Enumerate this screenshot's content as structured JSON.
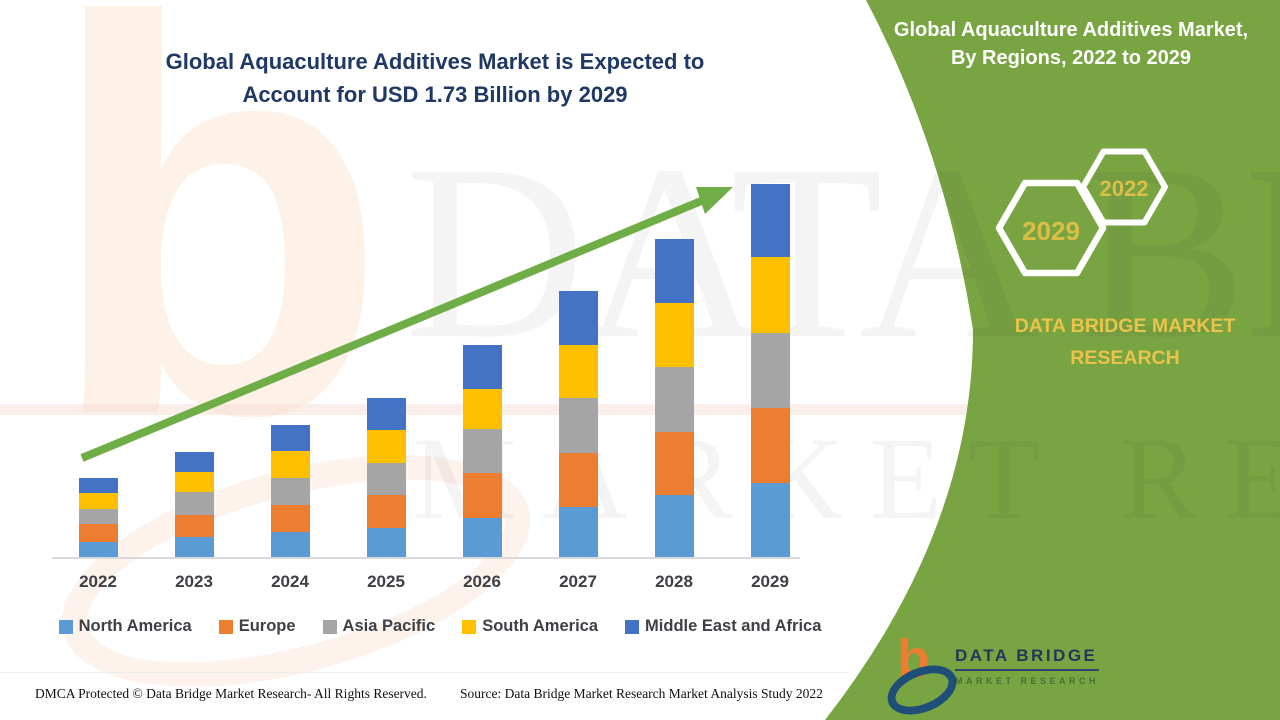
{
  "title": {
    "line1": "Global Aquaculture Additives Market is Expected to",
    "line2": "Account for USD 1.73 Billion by 2029"
  },
  "side_panel": {
    "title_line1": "Global Aquaculture Additives Market,",
    "title_line2": "By Regions, 2022 to 2029",
    "hexagon_large_label": "2029",
    "hexagon_small_label": "2022",
    "brand_line1": "DATA BRIDGE MARKET",
    "brand_line2": "RESEARCH"
  },
  "chart_data": {
    "type": "bar",
    "stacked": true,
    "title": "Global Aquaculture Additives Market is Expected to Account for USD 1.73 Billion by 2029",
    "unit": "USD Billion",
    "xlabel": "",
    "ylabel": "",
    "gridlines": false,
    "legend_position": "bottom",
    "trend_arrow": "up",
    "categories": [
      "2022",
      "2023",
      "2024",
      "2025",
      "2026",
      "2027",
      "2028",
      "2029"
    ],
    "series": [
      {
        "name": "North America",
        "color": "#5B9BD5",
        "values": [
          0.074,
          0.097,
          0.12,
          0.139,
          0.185,
          0.236,
          0.291,
          0.347
        ]
      },
      {
        "name": "Europe",
        "color": "#ED7D31",
        "values": [
          0.083,
          0.102,
          0.125,
          0.153,
          0.208,
          0.25,
          0.291,
          0.347
        ]
      },
      {
        "name": "Asia Pacific",
        "color": "#A5A5A5",
        "values": [
          0.069,
          0.106,
          0.125,
          0.148,
          0.204,
          0.254,
          0.301,
          0.347
        ]
      },
      {
        "name": "South America",
        "color": "#FFC000",
        "values": [
          0.074,
          0.093,
          0.125,
          0.153,
          0.185,
          0.245,
          0.296,
          0.352
        ]
      },
      {
        "name": "Middle East and Africa",
        "color": "#4472C4",
        "values": [
          0.069,
          0.093,
          0.12,
          0.148,
          0.204,
          0.25,
          0.296,
          0.338
        ]
      }
    ],
    "totals": [
      0.37,
      0.49,
      0.62,
      0.74,
      0.99,
      1.24,
      1.48,
      1.73
    ]
  },
  "watermark": {
    "letter": "b",
    "text_line1": "DATA BRIDGE",
    "text_line2": "MARKET RESEARCH"
  },
  "logo": {
    "primary": "DATA BRIDGE",
    "secondary": "MARKET RESEARCH"
  },
  "footer": {
    "dmca": "DMCA Protected © Data Bridge Market Research- All Rights Reserved.",
    "source": "Source: Data Bridge Market Research Market Analysis Study 2022"
  },
  "colors": {
    "panel_green": "#78A441",
    "arrow_green": "#6FAD46",
    "title_navy": "#1F3864",
    "gold": "#EAC44A",
    "hex_year_gold": "#DCBE46",
    "axis_line": "#D9D9D9",
    "axis_text": "#3F3F46"
  }
}
